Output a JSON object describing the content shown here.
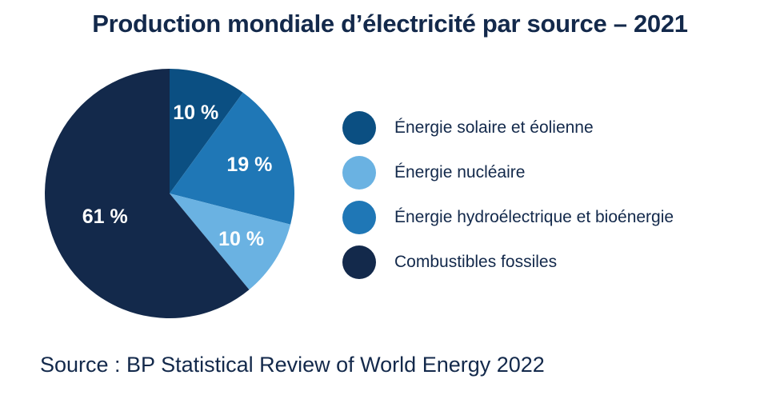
{
  "title": "Production mondiale d’électricité par source – 2021",
  "source": "Source : BP Statistical Review of World Energy 2022",
  "chart_data": {
    "type": "pie",
    "title": "Production mondiale d’électricité par source – 2021",
    "slices": [
      {
        "label": "Énergie solaire et éolienne",
        "value": 10,
        "display": "10 %",
        "color": "#0b4f82"
      },
      {
        "label": "Énergie hydroélectrique et bioénergie",
        "value": 19,
        "display": "19 %",
        "color": "#1f77b6"
      },
      {
        "label": "Énergie nucléaire",
        "value": 10,
        "display": "10 %",
        "color": "#6ab2e2"
      },
      {
        "label": "Combustibles fossiles",
        "value": 61,
        "display": "61 %",
        "color": "#13294b"
      }
    ],
    "legend": [
      {
        "label": "Énergie solaire et éolienne",
        "color": "#0b4f82"
      },
      {
        "label": "Énergie nucléaire",
        "color": "#6ab2e2"
      },
      {
        "label": "Énergie hydroélectrique et bioénergie",
        "color": "#1f77b6"
      },
      {
        "label": "Combustibles fossiles",
        "color": "#13294b"
      }
    ],
    "legend_position": "right",
    "label_color": "#ffffff"
  }
}
